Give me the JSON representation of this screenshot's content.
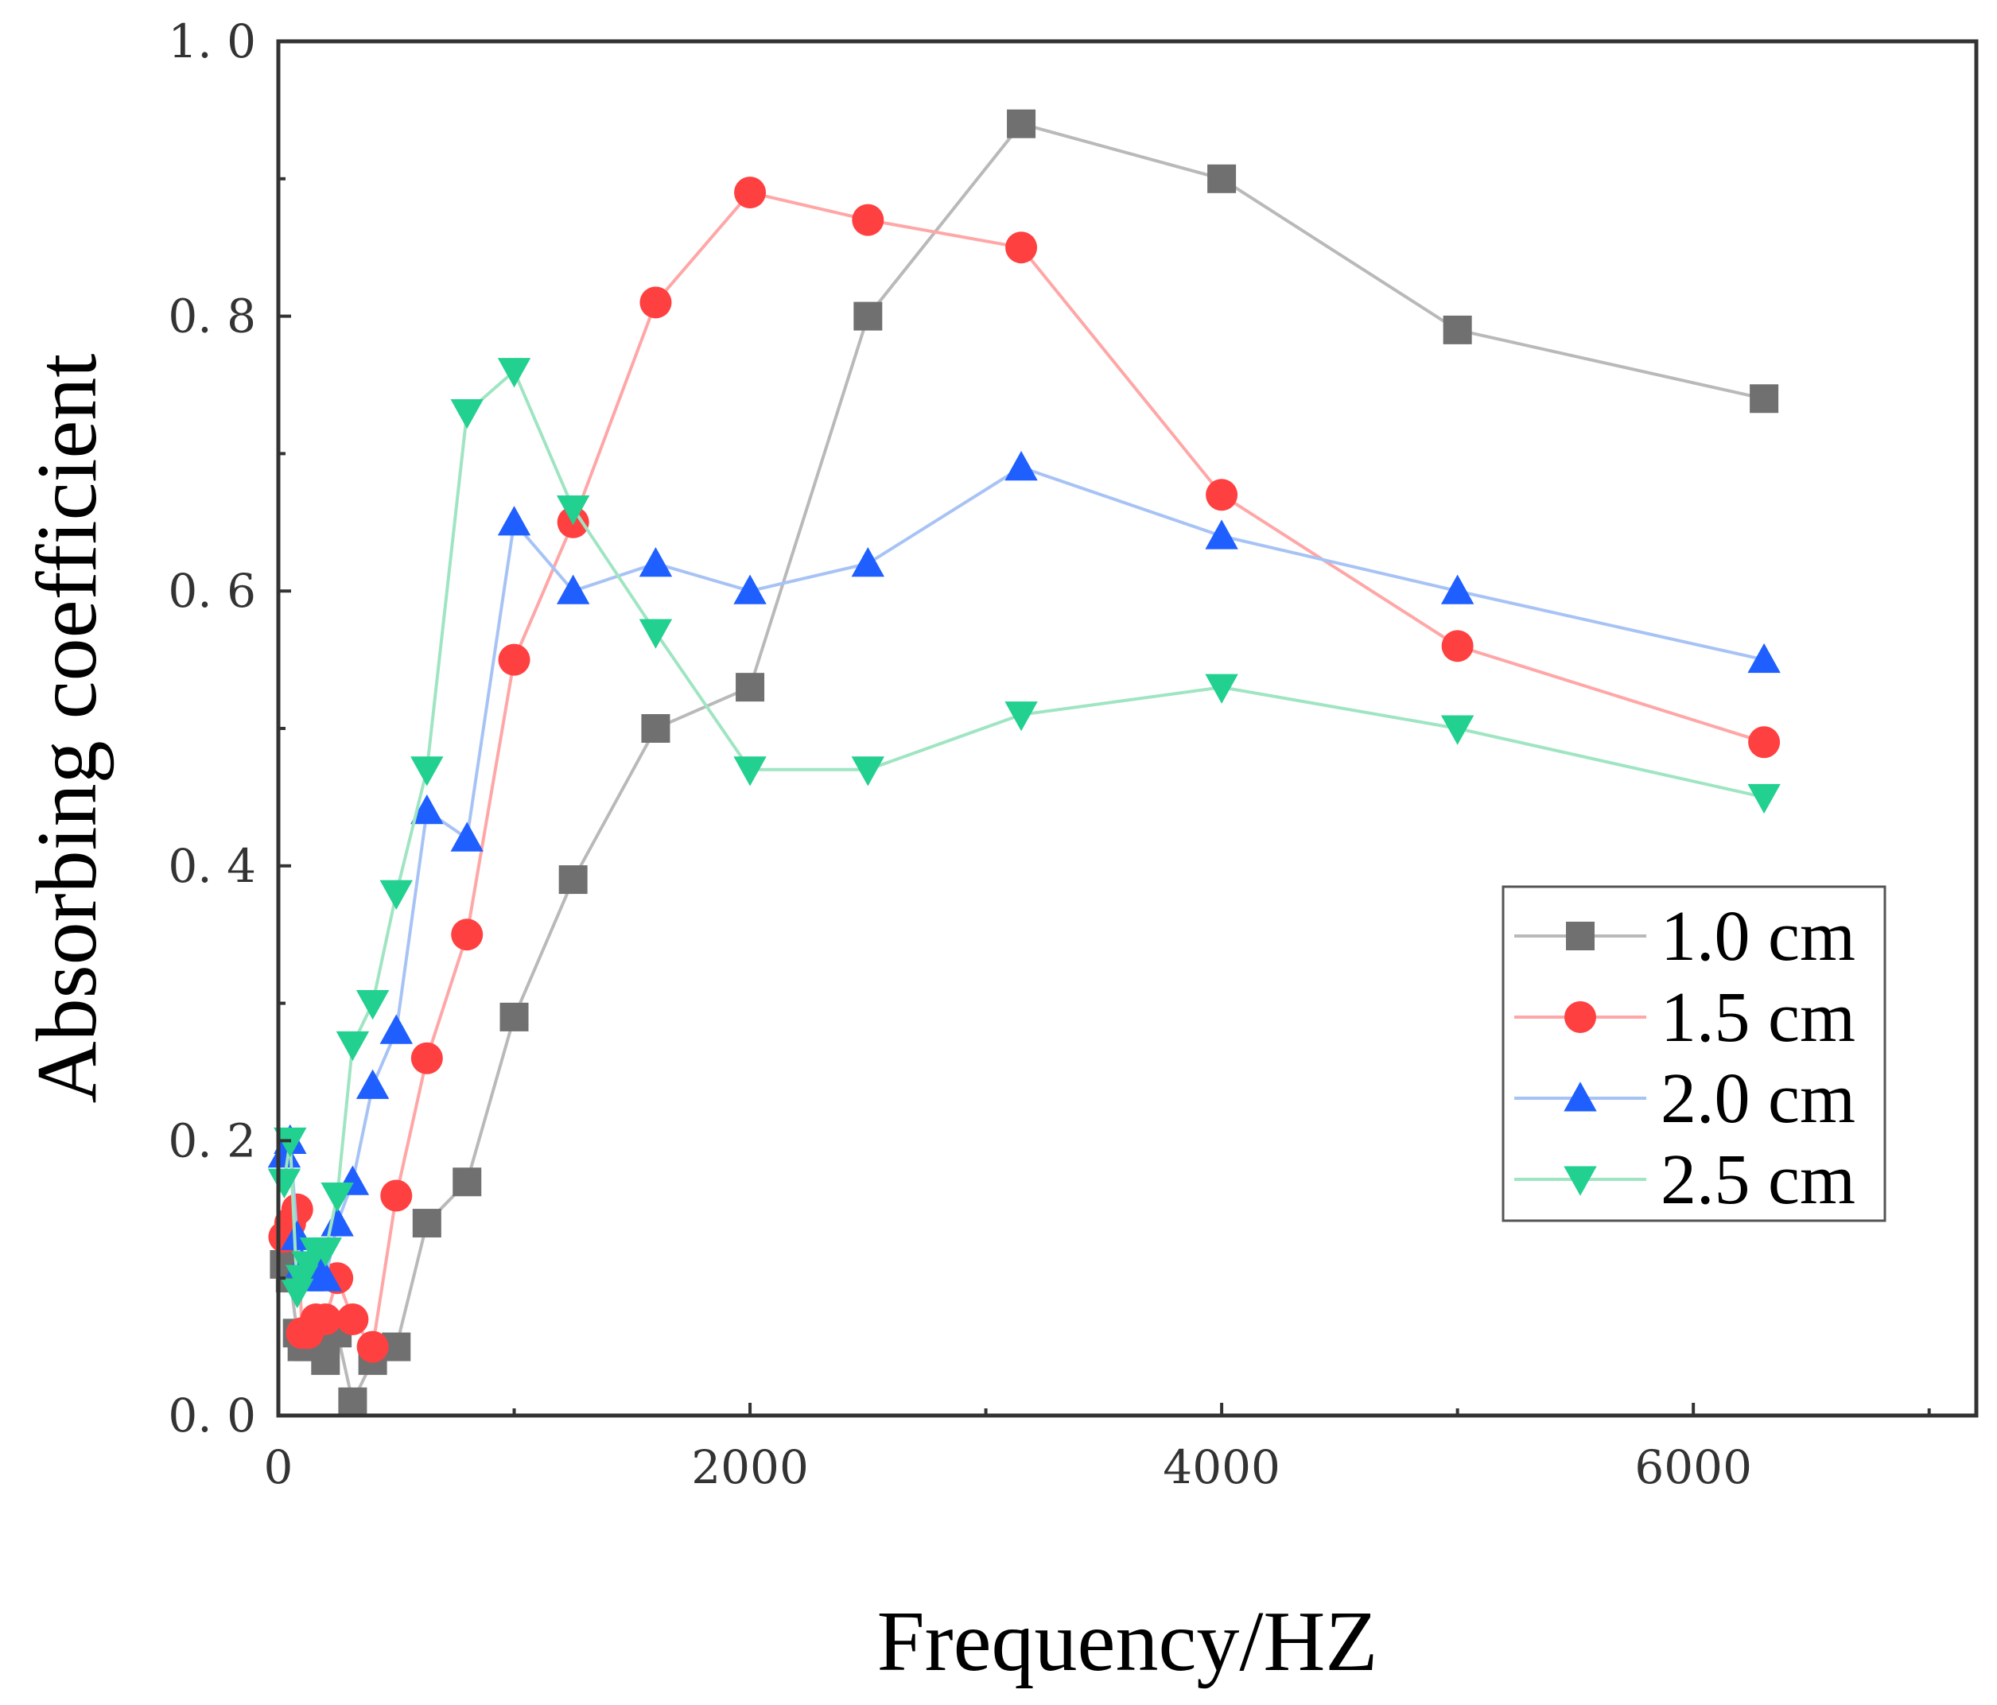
{
  "chart_data": {
    "type": "line",
    "title": "",
    "xlabel": "Frequency/HZ",
    "ylabel": "Absorbing coefficient",
    "xlim": [
      0,
      7200
    ],
    "ylim": [
      0.0,
      1.0
    ],
    "xticks": [
      0,
      2000,
      4000,
      6000
    ],
    "xtick_labels": [
      "0",
      "2000",
      "4000",
      "6000"
    ],
    "yticks": [
      0.0,
      0.2,
      0.4,
      0.6,
      0.8,
      1.0
    ],
    "ytick_labels": [
      "0. 0",
      "0. 2",
      "0. 4",
      "0. 6",
      "0. 8",
      "1. 0"
    ],
    "grid": false,
    "legend_position": "right",
    "x": [
      25,
      50,
      80,
      100,
      125,
      160,
      200,
      250,
      315,
      400,
      500,
      630,
      800,
      1000,
      1250,
      1600,
      2000,
      2500,
      3150,
      4000,
      5000,
      6300
    ],
    "series": [
      {
        "name": "1.0 cm",
        "color": "#707070",
        "line_color": "#b9b9b9",
        "marker": "square",
        "values": [
          0.11,
          0.1,
          0.06,
          0.05,
          0.05,
          0.06,
          0.04,
          0.06,
          0.01,
          0.04,
          0.05,
          0.14,
          0.17,
          0.29,
          0.39,
          0.5,
          0.53,
          0.8,
          0.94,
          0.9,
          0.79,
          0.74
        ]
      },
      {
        "name": "1.5 cm",
        "color": "#ff4040",
        "line_color": "#ffa6a6",
        "marker": "circle",
        "values": [
          0.13,
          0.14,
          0.15,
          0.06,
          0.06,
          0.07,
          0.07,
          0.1,
          0.07,
          0.05,
          0.16,
          0.26,
          0.35,
          0.55,
          0.65,
          0.81,
          0.89,
          0.87,
          0.85,
          0.67,
          0.56,
          0.49
        ]
      },
      {
        "name": "2.0 cm",
        "color": "#1f5fff",
        "line_color": "#a7c3f5",
        "marker": "triangle-up",
        "values": [
          0.19,
          0.2,
          0.13,
          0.11,
          0.1,
          0.11,
          0.1,
          0.14,
          0.17,
          0.24,
          0.28,
          0.44,
          0.42,
          0.65,
          0.6,
          0.62,
          0.6,
          0.62,
          0.69,
          0.64,
          0.6,
          0.55
        ]
      },
      {
        "name": "2.5 cm",
        "color": "#22d090",
        "line_color": "#9fe5c2",
        "marker": "triangle-down",
        "values": [
          0.17,
          0.2,
          0.09,
          0.1,
          0.11,
          0.12,
          0.12,
          0.16,
          0.27,
          0.3,
          0.38,
          0.47,
          0.73,
          0.76,
          0.66,
          0.57,
          0.47,
          0.47,
          0.51,
          0.53,
          0.5,
          0.45
        ]
      }
    ]
  }
}
